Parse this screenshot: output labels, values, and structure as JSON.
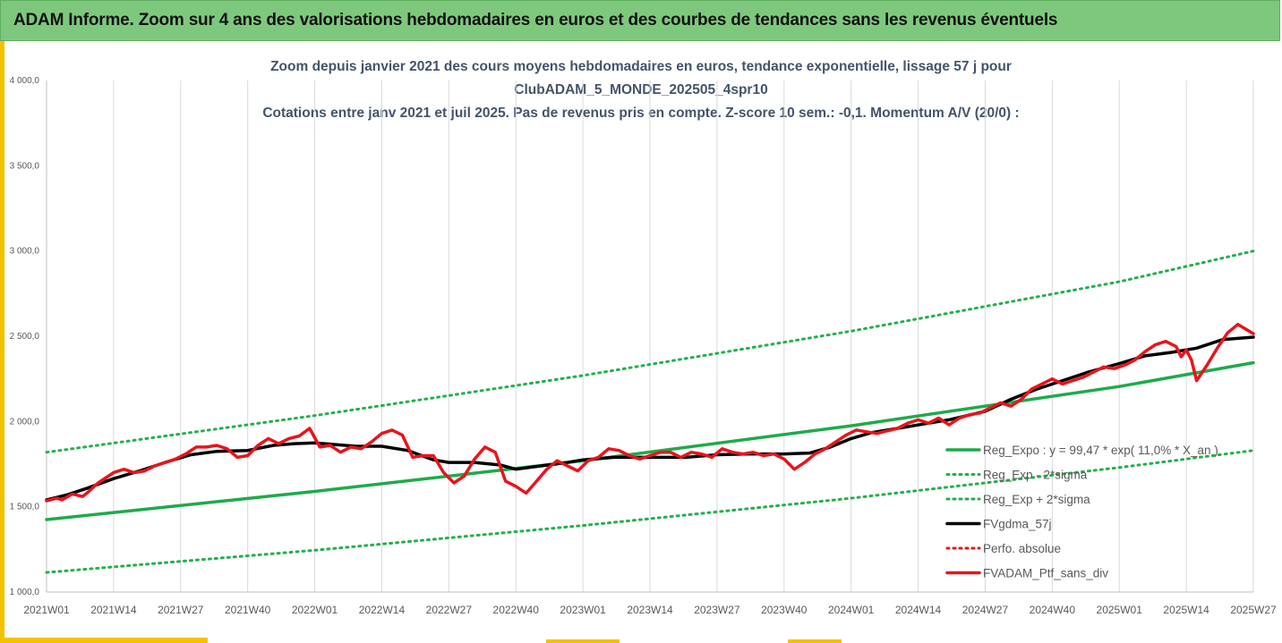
{
  "header": {
    "banner_title": "ADAM Informe. Zoom sur 4 ans des valorisations hebdomadaires en euros et des courbes de tendances sans les revenus éventuels"
  },
  "colors": {
    "banner_bg": "#7ec87e",
    "title_text": "#44546a",
    "reg_green": "#1faa4a",
    "sigma_green": "#22b04c",
    "smooth_black": "#000000",
    "portfolio_red": "#e8141c",
    "accent_yellow": "#f2c200"
  },
  "chart_data": {
    "type": "line",
    "title_lines": [
      "Zoom depuis janvier 2021 des cours moyens hebdomadaires  en euros, tendance exponentielle, lissage 57 j pour",
      "ClubADAM_5_MONDE_202505_4spr10",
      "Cotations entre janv 2021 et juil 2025. Pas de revenus pris en compte. Z-score 10 sem.: -0,1. Momentum A/V (20/0) :"
    ],
    "xlabel": "",
    "ylabel": "",
    "ylim": [
      1000,
      4000
    ],
    "xlim": [
      0,
      234
    ],
    "y_ticks": [
      {
        "value": 1000,
        "label": "1 000,0"
      },
      {
        "value": 1500,
        "label": "1 500,0"
      },
      {
        "value": 2000,
        "label": "2 000,0"
      },
      {
        "value": 2500,
        "label": "2 500,0"
      },
      {
        "value": 3000,
        "label": "3 000,0"
      },
      {
        "value": 3500,
        "label": "3 500,0"
      },
      {
        "value": 4000,
        "label": "4 000,0"
      }
    ],
    "x_ticks": [
      {
        "week": 0,
        "label": "2021W01"
      },
      {
        "week": 13,
        "label": "2021W14"
      },
      {
        "week": 26,
        "label": "2021W27"
      },
      {
        "week": 39,
        "label": "2021W40"
      },
      {
        "week": 52,
        "label": "2022W01"
      },
      {
        "week": 65,
        "label": "2022W14"
      },
      {
        "week": 78,
        "label": "2022W27"
      },
      {
        "week": 91,
        "label": "2022W40"
      },
      {
        "week": 104,
        "label": "2023W01"
      },
      {
        "week": 117,
        "label": "2023W14"
      },
      {
        "week": 130,
        "label": "2023W27"
      },
      {
        "week": 143,
        "label": "2023W40"
      },
      {
        "week": 156,
        "label": "2024W01"
      },
      {
        "week": 169,
        "label": "2024W14"
      },
      {
        "week": 182,
        "label": "2024W27"
      },
      {
        "week": 195,
        "label": "2024W40"
      },
      {
        "week": 208,
        "label": "2025W01"
      },
      {
        "week": 221,
        "label": "2025W14"
      },
      {
        "week": 234,
        "label": "2025W27"
      }
    ],
    "grid": "vertical",
    "legend_position": "bottom-right",
    "legend": [
      "Reg_Expo : y = 99,47 * exp( 11,0% *  X_an )",
      "Reg_Exp - 2*sigma",
      "Reg_Exp + 2*sigma",
      "FVgdma_57j",
      "Perfo. absolue",
      "FVADAM_Ptf_sans_div"
    ],
    "series": [
      {
        "name": "Reg_Expo : y = 99,47 * exp( 11,0% *  X_an )",
        "style": "solid-green",
        "x": [
          0,
          52,
          104,
          156,
          208,
          234
        ],
        "values": [
          1425,
          1590,
          1770,
          1975,
          2205,
          2345
        ]
      },
      {
        "name": "Reg_Exp - 2*sigma",
        "style": "dotted-green",
        "x": [
          0,
          52,
          104,
          156,
          208,
          234
        ],
        "values": [
          1115,
          1245,
          1390,
          1550,
          1730,
          1830
        ]
      },
      {
        "name": "Reg_Exp + 2*sigma",
        "style": "dotted-green",
        "x": [
          0,
          52,
          104,
          156,
          208,
          234
        ],
        "values": [
          1820,
          2035,
          2270,
          2530,
          2820,
          3000
        ]
      },
      {
        "name": "FVgdma_57j",
        "style": "solid-black",
        "x": [
          0,
          4,
          8,
          13,
          18,
          23,
          28,
          33,
          39,
          44,
          48,
          52,
          56,
          60,
          65,
          70,
          75,
          78,
          83,
          88,
          91,
          96,
          101,
          104,
          110,
          117,
          124,
          130,
          136,
          143,
          148,
          152,
          156,
          160,
          165,
          170,
          175,
          182,
          187,
          192,
          197,
          202,
          208,
          213,
          218,
          223,
          228,
          234
        ],
        "values": [
          1540,
          1570,
          1610,
          1665,
          1710,
          1760,
          1805,
          1825,
          1830,
          1860,
          1870,
          1875,
          1865,
          1855,
          1855,
          1830,
          1775,
          1760,
          1760,
          1745,
          1720,
          1740,
          1760,
          1775,
          1790,
          1790,
          1790,
          1805,
          1810,
          1810,
          1815,
          1850,
          1900,
          1935,
          1960,
          1985,
          2010,
          2060,
          2130,
          2190,
          2240,
          2290,
          2340,
          2385,
          2405,
          2430,
          2480,
          2495
        ]
      },
      {
        "name": "FVADAM_Ptf_sans_div",
        "style": "solid-red",
        "x": [
          0,
          2,
          3,
          5,
          7,
          8,
          10,
          13,
          15,
          17,
          19,
          21,
          23,
          25,
          27,
          29,
          31,
          33,
          35,
          37,
          39,
          41,
          43,
          45,
          47,
          49,
          51,
          53,
          55,
          57,
          59,
          61,
          63,
          65,
          67,
          69,
          71,
          73,
          75,
          77,
          79,
          81,
          83,
          85,
          87,
          89,
          91,
          93,
          95,
          97,
          99,
          101,
          103,
          105,
          107,
          109,
          111,
          113,
          115,
          117,
          119,
          121,
          123,
          125,
          127,
          129,
          131,
          133,
          135,
          137,
          139,
          141,
          143,
          145,
          147,
          149,
          151,
          153,
          155,
          157,
          159,
          161,
          163,
          165,
          167,
          169,
          171,
          173,
          175,
          177,
          179,
          181,
          183,
          185,
          187,
          189,
          191,
          193,
          195,
          197,
          199,
          201,
          203,
          205,
          207,
          209,
          211,
          213,
          215,
          217,
          219,
          220,
          221,
          222,
          223,
          225,
          227,
          229,
          231,
          234
        ],
        "values": [
          1535,
          1550,
          1540,
          1575,
          1560,
          1585,
          1640,
          1700,
          1720,
          1700,
          1710,
          1740,
          1760,
          1780,
          1810,
          1850,
          1850,
          1860,
          1840,
          1790,
          1800,
          1860,
          1900,
          1870,
          1900,
          1915,
          1960,
          1850,
          1860,
          1820,
          1850,
          1840,
          1880,
          1930,
          1950,
          1920,
          1790,
          1800,
          1800,
          1700,
          1640,
          1680,
          1780,
          1850,
          1820,
          1650,
          1620,
          1580,
          1650,
          1720,
          1770,
          1740,
          1710,
          1770,
          1790,
          1840,
          1830,
          1800,
          1780,
          1800,
          1820,
          1820,
          1790,
          1820,
          1810,
          1790,
          1840,
          1820,
          1810,
          1820,
          1800,
          1810,
          1780,
          1720,
          1760,
          1810,
          1840,
          1880,
          1920,
          1950,
          1940,
          1930,
          1945,
          1960,
          1990,
          2010,
          1990,
          2020,
          1980,
          2020,
          2040,
          2050,
          2080,
          2110,
          2090,
          2130,
          2190,
          2220,
          2250,
          2220,
          2240,
          2260,
          2290,
          2320,
          2310,
          2330,
          2360,
          2410,
          2450,
          2470,
          2440,
          2380,
          2420,
          2360,
          2240,
          2330,
          2430,
          2520,
          2570,
          2515
        ]
      }
    ]
  }
}
